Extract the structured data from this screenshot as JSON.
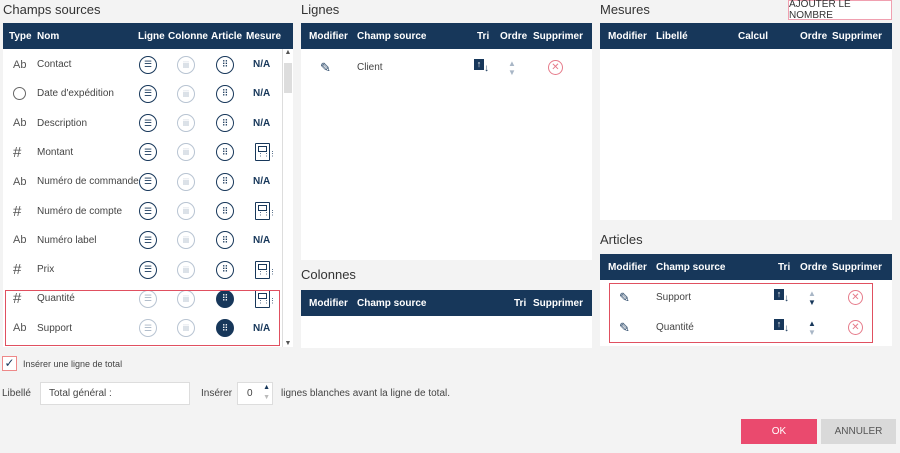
{
  "sources": {
    "title": "Champs sources",
    "headers": {
      "type": "Type",
      "nom": "Nom",
      "ligne": "Ligne",
      "colonne": "Colonne",
      "article": "Article",
      "mesure": "Mesure"
    },
    "rows": [
      {
        "type": "Ab",
        "name": "Contact",
        "article": "outline",
        "mesure": "N/A"
      },
      {
        "type": "clock",
        "name": "Date d'expédition",
        "article": "outline",
        "mesure": "N/A"
      },
      {
        "type": "Ab",
        "name": "Description",
        "article": "outline",
        "mesure": "N/A"
      },
      {
        "type": "#",
        "name": "Montant",
        "article": "outline",
        "mesure": "calculator-icon"
      },
      {
        "type": "Ab",
        "name": "Numéro de commande",
        "article": "outline",
        "mesure": "N/A"
      },
      {
        "type": "#",
        "name": "Numéro de compte",
        "article": "outline",
        "mesure": "calculator-icon"
      },
      {
        "type": "Ab",
        "name": "Numéro label",
        "article": "outline",
        "mesure": "N/A"
      },
      {
        "type": "#",
        "name": "Prix",
        "article": "outline",
        "mesure": "calculator-icon"
      },
      {
        "type": "#",
        "name": "Quantité",
        "article": "selected",
        "mesure": "calculator-icon",
        "highlighted": true
      },
      {
        "type": "Ab",
        "name": "Support",
        "article": "selected",
        "mesure": "N/A",
        "highlighted": true
      }
    ]
  },
  "lignes": {
    "title": "Lignes",
    "headers": {
      "modifier": "Modifier",
      "champ": "Champ source",
      "tri": "Tri",
      "ordre": "Ordre",
      "supprimer": "Supprimer"
    },
    "rows": [
      {
        "champ": "Client"
      }
    ]
  },
  "colonnes": {
    "title": "Colonnes",
    "headers": {
      "modifier": "Modifier",
      "champ": "Champ source",
      "tri": "Tri",
      "supprimer": "Supprimer"
    }
  },
  "mesures": {
    "title": "Mesures",
    "add_button": "AJOUTER LE NOMBRE",
    "headers": {
      "modifier": "Modifier",
      "libelle": "Libellé",
      "calcul": "Calcul",
      "ordre": "Ordre",
      "supprimer": "Supprimer"
    }
  },
  "articles": {
    "title": "Articles",
    "headers": {
      "modifier": "Modifier",
      "champ": "Champ source",
      "tri": "Tri",
      "ordre": "Ordre",
      "supprimer": "Supprimer"
    },
    "rows": [
      {
        "champ": "Support"
      },
      {
        "champ": "Quantité"
      }
    ]
  },
  "total": {
    "checkbox_label": "Insérer une ligne de total",
    "checked": true,
    "libelle_label": "Libellé",
    "libelle_value": "Total général :",
    "inserer_label": "Insérer",
    "blank_lines": "0",
    "suffix": "lignes blanches avant la ligne de total."
  },
  "buttons": {
    "ok": "OK",
    "cancel": "ANNULER"
  },
  "colors": {
    "header": "#17375a",
    "accent": "#e8436a",
    "highlight_border": "#e05060"
  }
}
